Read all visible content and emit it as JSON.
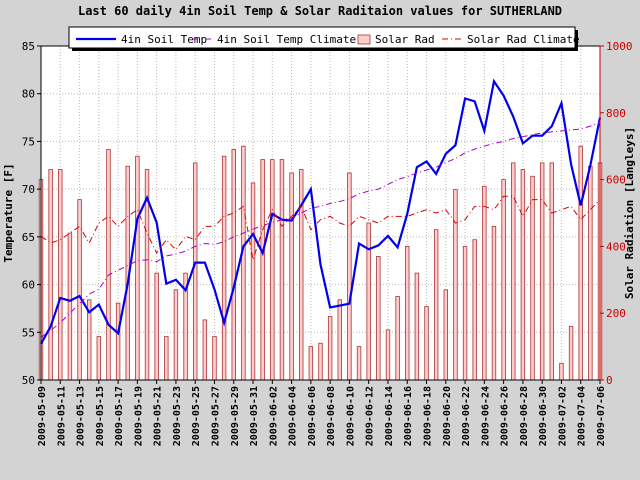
{
  "chart_data": {
    "type": "bar+line",
    "title": "Last 60 daily 4in Soil Temp & Solar Raditaion values for  SUTHERLAND",
    "ylabel": "Temperature [F]",
    "y2label": "Solar Radiation [Langleys]",
    "ylim": [
      50,
      85
    ],
    "y2lim": [
      0,
      1000
    ],
    "yticks": [
      50,
      55,
      60,
      65,
      70,
      75,
      80,
      85
    ],
    "y2ticks": [
      0,
      200,
      400,
      600,
      800,
      1000
    ],
    "grid": true,
    "legend_position": "top",
    "x": [
      "2009-05-09",
      "2009-05-10",
      "2009-05-11",
      "2009-05-12",
      "2009-05-13",
      "2009-05-14",
      "2009-05-15",
      "2009-05-16",
      "2009-05-17",
      "2009-05-18",
      "2009-05-19",
      "2009-05-20",
      "2009-05-21",
      "2009-05-22",
      "2009-05-23",
      "2009-05-24",
      "2009-05-25",
      "2009-05-26",
      "2009-05-27",
      "2009-05-28",
      "2009-05-29",
      "2009-05-30",
      "2009-05-31",
      "2009-06-01",
      "2009-06-02",
      "2009-06-03",
      "2009-06-04",
      "2009-06-05",
      "2009-06-06",
      "2009-06-07",
      "2009-06-08",
      "2009-06-09",
      "2009-06-10",
      "2009-06-11",
      "2009-06-12",
      "2009-06-13",
      "2009-06-14",
      "2009-06-15",
      "2009-06-16",
      "2009-06-17",
      "2009-06-18",
      "2009-06-19",
      "2009-06-20",
      "2009-06-21",
      "2009-06-22",
      "2009-06-23",
      "2009-06-24",
      "2009-06-25",
      "2009-06-26",
      "2009-06-27",
      "2009-06-28",
      "2009-06-29",
      "2009-06-30",
      "2009-07-01",
      "2009-07-02",
      "2009-07-03",
      "2009-07-04",
      "2009-07-05",
      "2009-07-06"
    ],
    "xtick_labels": [
      "2009-05-09",
      "2009-05-11",
      "2009-05-13",
      "2009-05-15",
      "2009-05-17",
      "2009-05-19",
      "2009-05-21",
      "2009-05-23",
      "2009-05-25",
      "2009-05-27",
      "2009-05-29",
      "2009-05-31",
      "2009-06-02",
      "2009-06-04",
      "2009-06-06",
      "2009-06-08",
      "2009-06-10",
      "2009-06-12",
      "2009-06-14",
      "2009-06-16",
      "2009-06-18",
      "2009-06-20",
      "2009-06-22",
      "2009-06-24",
      "2009-06-26",
      "2009-06-28",
      "2009-06-30",
      "2009-07-02",
      "2009-07-04",
      "2009-07-06"
    ],
    "series": [
      {
        "name": "4in Soil Temp",
        "axis": "left",
        "style": "line",
        "color": "#0000ee",
        "values": [
          53.8,
          55.6,
          58.6,
          58.3,
          58.8,
          57.1,
          57.9,
          55.8,
          54.9,
          60.1,
          66.9,
          69.1,
          66.5,
          60.1,
          60.5,
          59.4,
          62.3,
          62.3,
          59.5,
          56.0,
          59.7,
          64.0,
          65.3,
          63.3,
          67.4,
          66.8,
          66.7,
          68.3,
          70.0,
          62.1,
          57.6,
          57.8,
          58.0,
          64.3,
          63.7,
          64.1,
          65.1,
          63.9,
          67.4,
          72.3,
          72.9,
          71.6,
          73.7,
          74.6,
          79.5,
          79.2,
          76.1,
          81.3,
          79.8,
          77.6,
          74.8,
          75.6,
          75.6,
          76.6,
          79.0,
          72.6,
          68.3,
          72.5,
          77.5
        ]
      },
      {
        "name": "4in Soil Temp Climate",
        "axis": "left",
        "style": "dashdot",
        "color": "#aa00cc",
        "values": [
          54.5,
          55.2,
          56.0,
          57.0,
          58.0,
          59.0,
          59.5,
          61.0,
          61.5,
          62.0,
          62.5,
          62.6,
          62.4,
          63.0,
          63.2,
          63.5,
          64.0,
          64.3,
          64.2,
          64.5,
          65.0,
          65.4,
          65.8,
          66.2,
          66.5,
          66.8,
          67.0,
          67.5,
          68.0,
          68.2,
          68.5,
          68.7,
          69.0,
          69.5,
          69.8,
          70.0,
          70.5,
          71.0,
          71.3,
          71.7,
          72.0,
          72.3,
          72.8,
          73.2,
          73.8,
          74.2,
          74.5,
          74.8,
          75.0,
          75.3,
          75.5,
          75.7,
          75.9,
          76.0,
          76.1,
          76.2,
          76.3,
          76.6,
          77.0
        ]
      },
      {
        "name": "Solar Rad",
        "axis": "right",
        "style": "bar",
        "color": "#ffcccc",
        "values": [
          600,
          630,
          630,
          440,
          540,
          240,
          130,
          690,
          230,
          640,
          670,
          630,
          320,
          130,
          270,
          320,
          650,
          180,
          130,
          670,
          690,
          700,
          590,
          660,
          660,
          660,
          620,
          630,
          100,
          110,
          190,
          240,
          620,
          100,
          470,
          370,
          150,
          250,
          400,
          320,
          220,
          450,
          270,
          570,
          400,
          420,
          580,
          460,
          600,
          650,
          630,
          610,
          650,
          650,
          50,
          160,
          700,
          640,
          650
        ]
      },
      {
        "name": "Solar Rad Climate",
        "axis": "right",
        "style": "dashdot",
        "color": "#dd0000",
        "values": [
          430,
          410,
          420,
          440,
          460,
          410,
          470,
          490,
          460,
          490,
          510,
          440,
          380,
          420,
          390,
          430,
          420,
          460,
          460,
          490,
          500,
          520,
          360,
          450,
          510,
          460,
          490,
          520,
          450,
          480,
          490,
          470,
          460,
          490,
          480,
          470,
          490,
          490,
          490,
          500,
          510,
          500,
          510,
          470,
          480,
          520,
          520,
          510,
          550,
          550,
          490,
          540,
          540,
          500,
          510,
          520,
          480,
          510,
          540
        ]
      }
    ]
  }
}
